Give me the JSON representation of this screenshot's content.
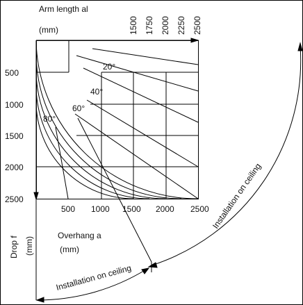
{
  "diagram": {
    "arm_length_title": "Arm length al",
    "arm_length_unit": "(mm)",
    "arm_lengths": [
      "1500",
      "1750",
      "2000",
      "2250",
      "2500"
    ],
    "x_ticks": [
      "500",
      "1000",
      "1500",
      "2000",
      "2500"
    ],
    "y_ticks": [
      "500",
      "1000",
      "1500",
      "2000",
      "2500"
    ],
    "angle_labels": [
      "20°",
      "40°",
      "60°",
      "80°"
    ],
    "overhang_label": "Overhang a",
    "overhang_unit": "(mm)",
    "drop_label": "Drop f",
    "drop_unit": "(mm)",
    "installation_ceiling_right": "Installation on ceiling",
    "installation_ceiling_bottom": "Installation on ceiling"
  }
}
